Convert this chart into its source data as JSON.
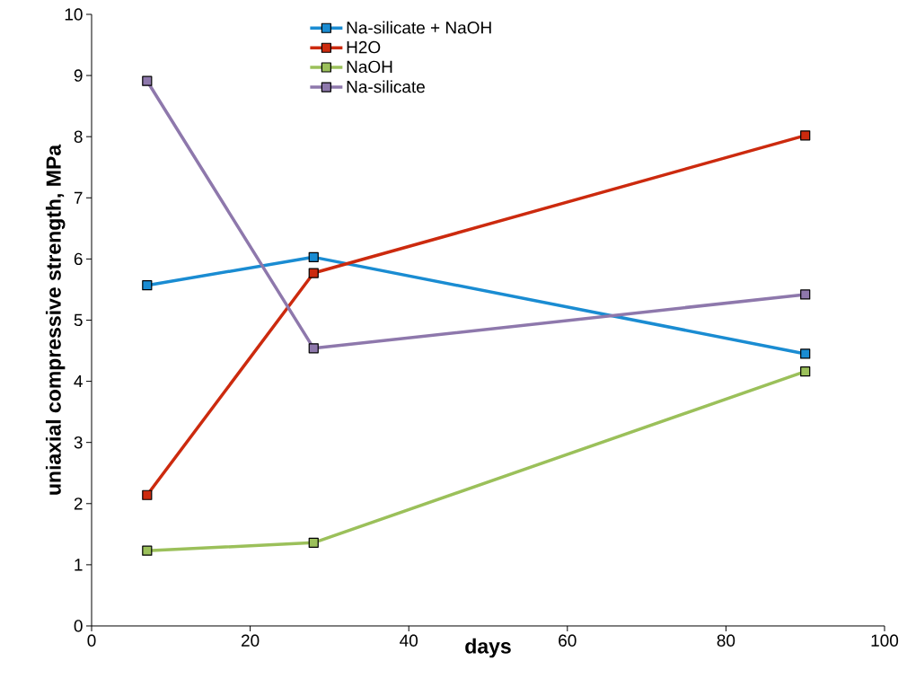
{
  "chart_data": {
    "type": "line",
    "xlabel": "days",
    "ylabel": "uniaxial compressive strength, MPa",
    "x": [
      7,
      28,
      90
    ],
    "series": [
      {
        "name": "Na-silicate + NaOH",
        "color": "#1a8cd2",
        "values": [
          5.57,
          6.03,
          4.45
        ]
      },
      {
        "name": "H2O",
        "color": "#cc2a0e",
        "values": [
          2.14,
          5.77,
          8.02
        ]
      },
      {
        "name": "NaOH",
        "color": "#9bc05a",
        "values": [
          1.23,
          1.36,
          4.16
        ]
      },
      {
        "name": "Na-silicate",
        "color": "#8e78ac",
        "values": [
          8.91,
          4.54,
          5.42
        ]
      }
    ],
    "xlim": [
      0,
      100
    ],
    "xticks": [
      0,
      20,
      40,
      60,
      80,
      100
    ],
    "ylim": [
      0,
      10
    ],
    "yticks": [
      0,
      1,
      2,
      3,
      4,
      5,
      6,
      7,
      8,
      9,
      10
    ],
    "grid": false,
    "legend": "top",
    "marker": "square",
    "line_style": "solid"
  }
}
